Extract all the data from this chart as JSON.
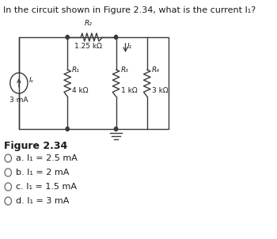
{
  "title": "In the circuit shown in Figure 2.34, what is the current I₁?",
  "figure_label": "Figure 2.34",
  "question_options": [
    "a. I₁ = 2.5 mA",
    "b. I₁ = 2 mA",
    "c. I₁ = 1.5 mA",
    "d. I₁ = 3 mA"
  ],
  "source_label": "Iₛ",
  "source_value": "3 mA",
  "R1_label": "R₁",
  "R1_value": "4 kΩ",
  "R2_label": "R₂",
  "R2_value": "1.25 kΩ",
  "R3_label": "R₃",
  "R3_value": "1 kΩ",
  "R4_label": "R₄",
  "R4_value": "3 kΩ",
  "I1_label": "I₁",
  "bg_color": "#ffffff",
  "text_color": "#1a1a1a",
  "line_color": "#3a3a3a"
}
